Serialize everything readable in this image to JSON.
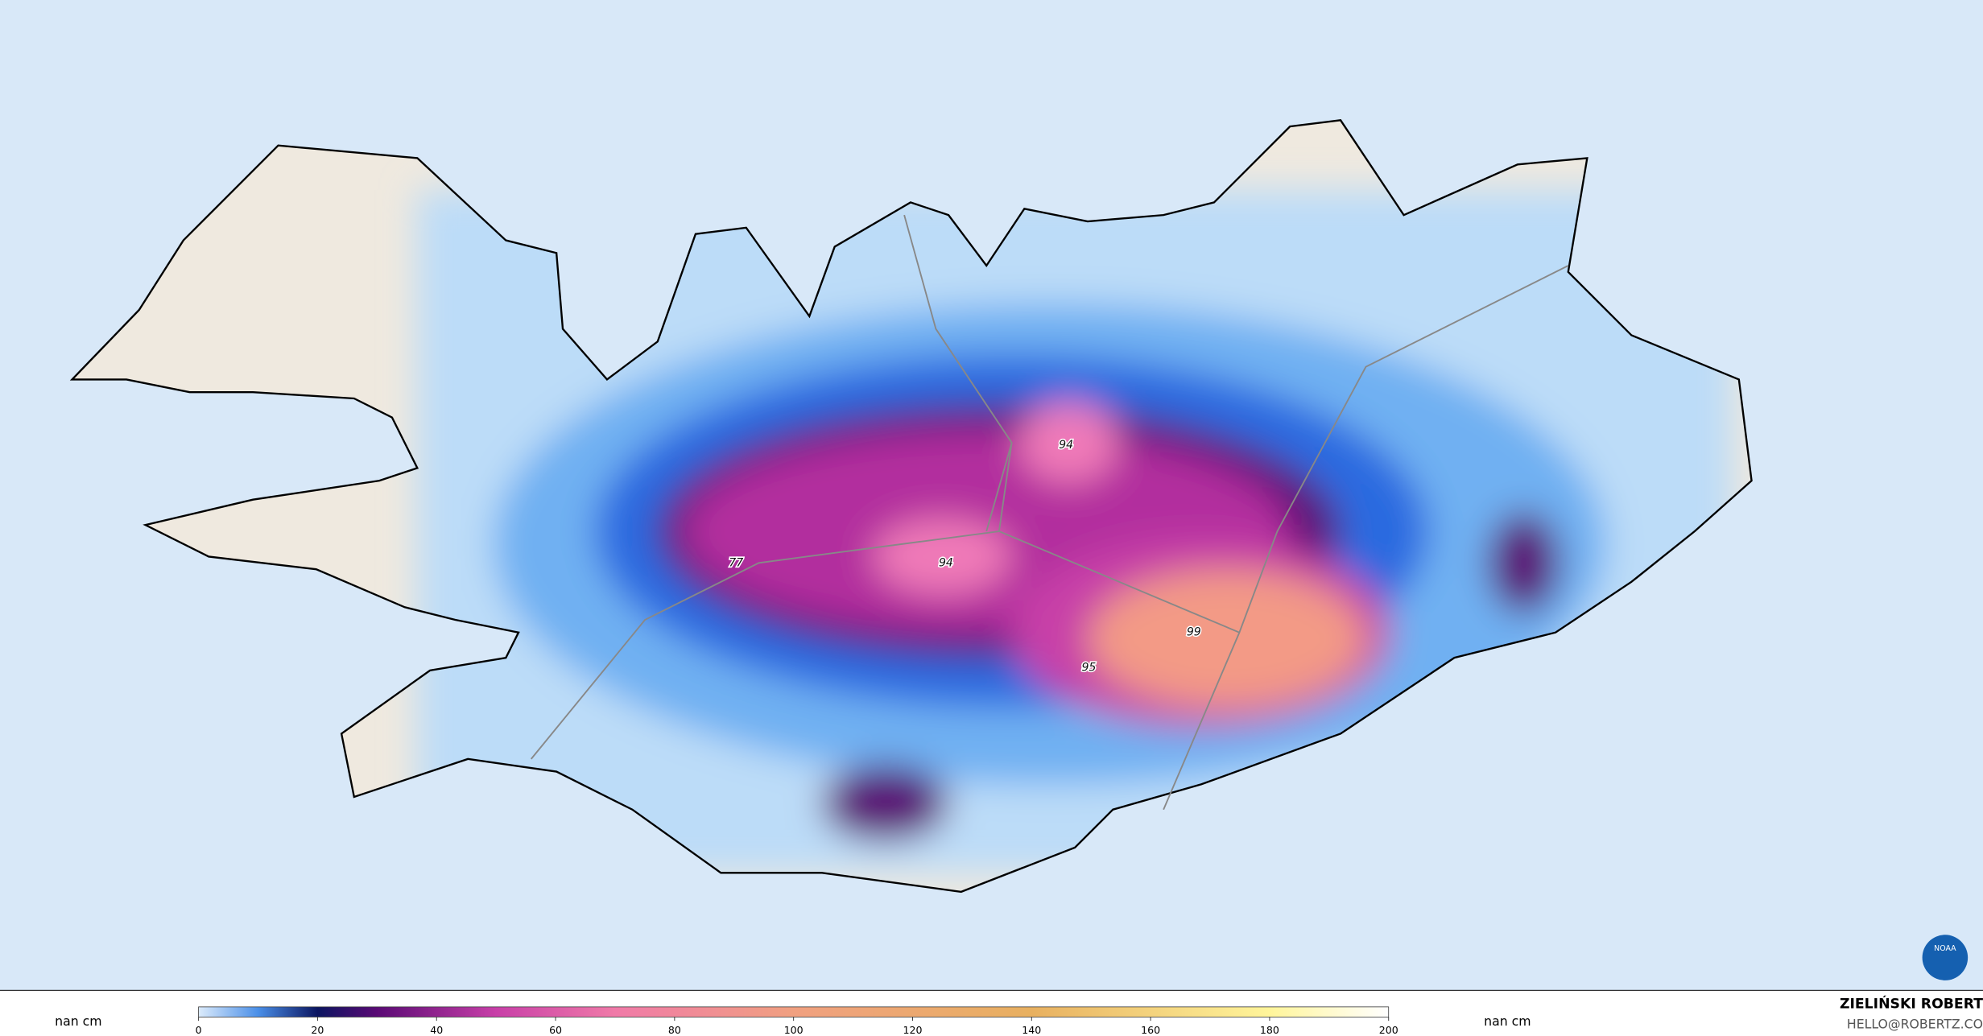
{
  "map": {
    "labels": [
      77,
      94,
      94,
      99,
      95
    ],
    "logo_text": "NOAA"
  },
  "colorbar": {
    "lim": [
      0,
      200
    ],
    "ticks": [
      0,
      20,
      40,
      60,
      80,
      100,
      120,
      140,
      160,
      180,
      200
    ]
  },
  "unit_left": "nan cm",
  "unit_right": "nan cm",
  "credit": {
    "name": "ZIELIŃSKI ROBERT",
    "email": "HELLO@ROBERTZ.CO"
  }
}
